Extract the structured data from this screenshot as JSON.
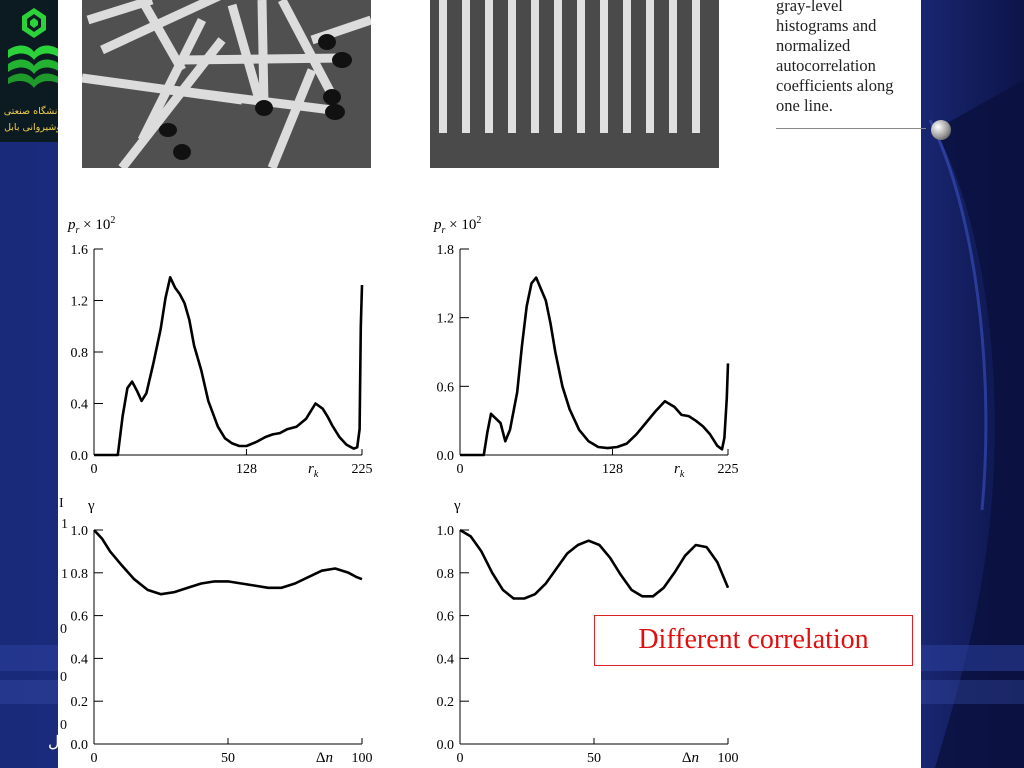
{
  "caption": {
    "lines": [
      "gray-level",
      "histograms and",
      "normalized",
      "autocorrelation",
      "coefficients along",
      "one line."
    ]
  },
  "logo": {
    "line1": "دانشگاه صنعتی",
    "line2": "نوشیروانی بابل"
  },
  "callout": {
    "text": "Different correlation"
  },
  "margin_fragments": [
    "I",
    "1",
    "1",
    "0",
    "0",
    "0",
    "ل"
  ],
  "colors": {
    "background": "#1b2a78",
    "page": "#ffffff",
    "callout_text": "#e01010",
    "callout_border": "#d22222",
    "logo_text": "#f4d24a"
  },
  "photos": [
    {
      "subject": "randomly arranged matches"
    },
    {
      "subject": "parallel matches in a row"
    }
  ],
  "chart_data": [
    {
      "type": "line",
      "ylabel": "p_r × 10^2",
      "xlabel": "r_k",
      "xlim": [
        0,
        225
      ],
      "ylim": [
        0,
        1.6
      ],
      "xticks": [
        "0",
        "128",
        "225"
      ],
      "yticks": [
        "0.0",
        "0.4",
        "0.8",
        "1.2",
        "1.6"
      ],
      "x": [
        0,
        20,
        24,
        28,
        32,
        36,
        40,
        44,
        50,
        56,
        60,
        64,
        68,
        72,
        76,
        80,
        84,
        90,
        96,
        104,
        110,
        116,
        122,
        128,
        136,
        144,
        150,
        156,
        162,
        170,
        178,
        186,
        192,
        196,
        200,
        206,
        212,
        218,
        221,
        223,
        224,
        225
      ],
      "y": [
        0,
        0,
        0.3,
        0.52,
        0.57,
        0.5,
        0.42,
        0.48,
        0.72,
        0.98,
        1.22,
        1.38,
        1.3,
        1.25,
        1.18,
        1.05,
        0.85,
        0.66,
        0.42,
        0.22,
        0.13,
        0.09,
        0.07,
        0.07,
        0.1,
        0.14,
        0.16,
        0.17,
        0.2,
        0.22,
        0.28,
        0.4,
        0.36,
        0.3,
        0.23,
        0.14,
        0.08,
        0.05,
        0.06,
        0.2,
        1.0,
        1.32
      ]
    },
    {
      "type": "line",
      "ylabel": "p_r × 10^2",
      "xlabel": "r_k",
      "xlim": [
        0,
        225
      ],
      "ylim": [
        0,
        1.8
      ],
      "xticks": [
        "0",
        "128",
        "225"
      ],
      "yticks": [
        "0.0",
        "0.6",
        "1.2",
        "1.8"
      ],
      "x": [
        0,
        20,
        23,
        26,
        30,
        34,
        38,
        42,
        48,
        52,
        56,
        60,
        64,
        68,
        72,
        76,
        80,
        86,
        92,
        100,
        108,
        116,
        124,
        132,
        140,
        148,
        156,
        164,
        172,
        180,
        186,
        192,
        198,
        204,
        210,
        216,
        220,
        222,
        224,
        225
      ],
      "y": [
        0,
        0,
        0.2,
        0.36,
        0.32,
        0.28,
        0.12,
        0.22,
        0.55,
        0.95,
        1.3,
        1.5,
        1.55,
        1.45,
        1.35,
        1.15,
        0.9,
        0.6,
        0.4,
        0.22,
        0.12,
        0.07,
        0.06,
        0.07,
        0.1,
        0.18,
        0.28,
        0.38,
        0.47,
        0.42,
        0.35,
        0.34,
        0.3,
        0.25,
        0.18,
        0.08,
        0.05,
        0.15,
        0.5,
        0.8
      ]
    },
    {
      "type": "line",
      "ylabel": "γ",
      "xlabel": "Δn",
      "xlim": [
        0,
        100
      ],
      "ylim": [
        0,
        1.0
      ],
      "xticks": [
        "0",
        "50",
        "100"
      ],
      "yticks": [
        "0.0",
        "0.2",
        "0.4",
        "0.6",
        "0.8",
        "1.0"
      ],
      "x": [
        0,
        3,
        6,
        10,
        15,
        20,
        25,
        30,
        35,
        40,
        45,
        50,
        55,
        60,
        65,
        70,
        75,
        80,
        85,
        90,
        95,
        98,
        100
      ],
      "y": [
        1.0,
        0.96,
        0.9,
        0.84,
        0.77,
        0.72,
        0.7,
        0.71,
        0.73,
        0.75,
        0.76,
        0.76,
        0.75,
        0.74,
        0.73,
        0.73,
        0.75,
        0.78,
        0.81,
        0.82,
        0.8,
        0.78,
        0.77
      ]
    },
    {
      "type": "line",
      "ylabel": "γ",
      "xlabel": "Δn",
      "xlim": [
        0,
        100
      ],
      "ylim": [
        0,
        1.0
      ],
      "xticks": [
        "0",
        "50",
        "100"
      ],
      "yticks": [
        "0.0",
        "0.2",
        "0.4",
        "0.6",
        "0.8",
        "1.0"
      ],
      "x": [
        0,
        4,
        8,
        12,
        16,
        20,
        24,
        28,
        32,
        36,
        40,
        44,
        48,
        52,
        56,
        60,
        64,
        68,
        72,
        76,
        80,
        84,
        88,
        92,
        96,
        100
      ],
      "y": [
        1.0,
        0.97,
        0.9,
        0.8,
        0.72,
        0.68,
        0.68,
        0.7,
        0.75,
        0.82,
        0.89,
        0.93,
        0.95,
        0.93,
        0.87,
        0.79,
        0.72,
        0.69,
        0.69,
        0.73,
        0.8,
        0.88,
        0.93,
        0.92,
        0.85,
        0.73
      ]
    }
  ]
}
